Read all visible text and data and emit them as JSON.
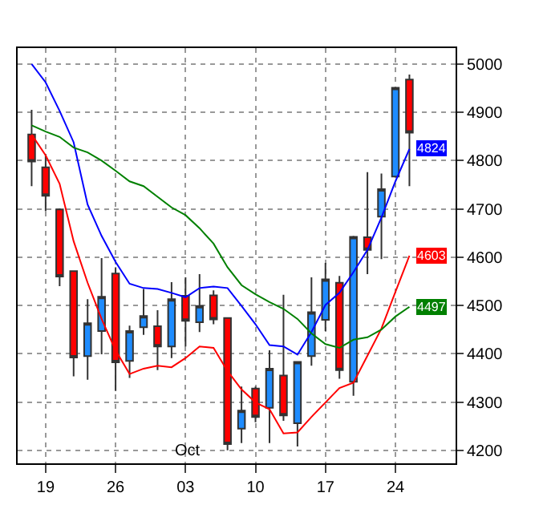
{
  "chart_data": {
    "type": "candlestick",
    "categories": [
      null,
      "19",
      null,
      null,
      null,
      null,
      "26",
      null,
      null,
      null,
      null,
      "03",
      null,
      null,
      null,
      null,
      "10",
      null,
      null,
      null,
      null,
      "17",
      null,
      null,
      null,
      null,
      "24",
      null
    ],
    "ohlc": [
      [
        4854,
        4905,
        4747,
        4798
      ],
      [
        4786,
        4813,
        4695,
        4727
      ],
      [
        4699,
        4701,
        4540,
        4560
      ],
      [
        4571,
        4571,
        4353,
        4392
      ],
      [
        4395,
        4513,
        4346,
        4463
      ],
      [
        4447,
        4598,
        4399,
        4518
      ],
      [
        4566,
        4579,
        4323,
        4382
      ],
      [
        4385,
        4458,
        4350,
        4447
      ],
      [
        4455,
        4534,
        4439,
        4478
      ],
      [
        4457,
        4490,
        4366,
        4415
      ],
      [
        4415,
        4548,
        4391,
        4513
      ],
      [
        4520,
        4558,
        4415,
        4468
      ],
      [
        4465,
        4565,
        4445,
        4499
      ],
      [
        4521,
        4531,
        4461,
        4471
      ],
      [
        4474,
        4474,
        4200,
        4213
      ],
      [
        4245,
        4332,
        4215,
        4282
      ],
      [
        4328,
        4332,
        4258,
        4269
      ],
      [
        4288,
        4407,
        4215,
        4369
      ],
      [
        4355,
        4522,
        4261,
        4272
      ],
      [
        4256,
        4383,
        4208,
        4383
      ],
      [
        4395,
        4558,
        4375,
        4486
      ],
      [
        4470,
        4588,
        4447,
        4554
      ],
      [
        4547,
        4561,
        4348,
        4366
      ],
      [
        4342,
        4644,
        4313,
        4642
      ],
      [
        4641,
        4776,
        4565,
        4615
      ],
      [
        4684,
        4773,
        4596,
        4741
      ],
      [
        4767,
        4951,
        4767,
        4951
      ],
      [
        4968,
        4978,
        4747,
        4858
      ]
    ],
    "colors": [
      "#ff0000",
      "#ff0000",
      "#ff0000",
      "#ff0000",
      "#1e8cff",
      "#1e8cff",
      "#ff0000",
      "#1e8cff",
      "#1e8cff",
      "#ff0000",
      "#1e8cff",
      "#ff0000",
      "#1e8cff",
      "#ff0000",
      "#ff0000",
      "#1e8cff",
      "#ff0000",
      "#1e8cff",
      "#ff0000",
      "#1e8cff",
      "#1e8cff",
      "#1e8cff",
      "#ff0000",
      "#1e8cff",
      "#ff0000",
      "#1e8cff",
      "#1e8cff",
      "#ff0000"
    ],
    "series": [
      {
        "type": "line",
        "color": "#0000ff",
        "values": [
          5000,
          4962,
          4903,
          4838,
          4709,
          4644,
          4590,
          4545,
          4536,
          4534,
          4526,
          4517,
          4536,
          4539,
          4536,
          4499,
          4461,
          4418,
          4415,
          4398,
          4445,
          4501,
          4526,
          4569,
          4615,
          4682,
          4757,
          4824
        ],
        "value_labels": [
          null,
          null,
          null,
          null,
          null,
          null,
          null,
          null,
          null,
          null,
          null,
          null,
          null,
          null,
          null,
          null,
          null,
          null,
          null,
          null,
          null,
          null,
          null,
          null,
          null,
          null,
          null,
          "4824"
        ]
      },
      {
        "type": "line",
        "color": "#ff0000",
        "values": [
          4854,
          4811,
          4752,
          4633,
          4547,
          4472,
          4407,
          4358,
          4369,
          4375,
          4372,
          4391,
          4415,
          4412,
          4364,
          4326,
          4299,
          4285,
          4235,
          4237,
          4269,
          4299,
          4329,
          4340,
          4396,
          4452,
          4528,
          4603
        ],
        "value_labels": [
          null,
          null,
          null,
          null,
          null,
          null,
          null,
          null,
          null,
          null,
          null,
          null,
          null,
          null,
          null,
          null,
          null,
          null,
          null,
          null,
          null,
          null,
          null,
          null,
          null,
          null,
          null,
          "4603"
        ]
      },
      {
        "type": "line",
        "color": "#008000",
        "values": [
          4873,
          4860,
          4849,
          4827,
          4817,
          4800,
          4779,
          4757,
          4747,
          4725,
          4703,
          4687,
          4660,
          4628,
          4579,
          4542,
          4523,
          4507,
          4493,
          4472,
          4442,
          4420,
          4412,
          4429,
          4434,
          4450,
          4477,
          4497
        ],
        "value_labels": [
          null,
          null,
          null,
          null,
          null,
          null,
          null,
          null,
          null,
          null,
          null,
          null,
          null,
          null,
          null,
          null,
          null,
          null,
          null,
          null,
          null,
          null,
          null,
          null,
          null,
          null,
          null,
          "4497"
        ]
      }
    ],
    "annotations": [
      "Oct"
    ],
    "ylim": [
      4173,
      5033
    ],
    "yticks": [
      4200,
      4300,
      4400,
      4500,
      4600,
      4700,
      4800,
      4900,
      5000
    ],
    "grid": true
  }
}
